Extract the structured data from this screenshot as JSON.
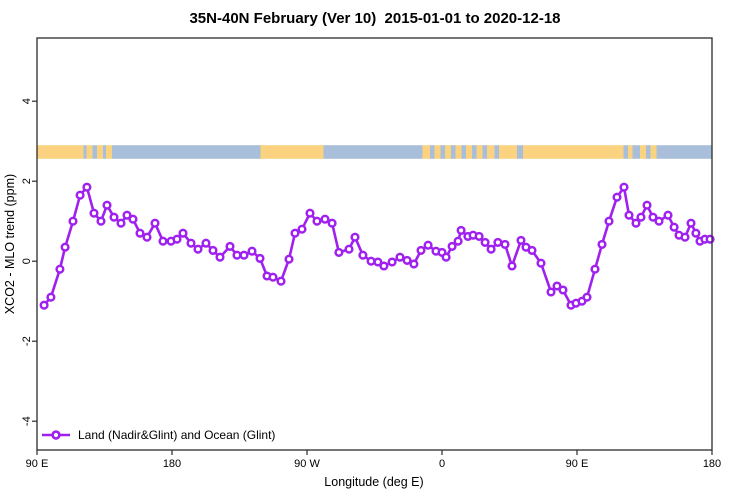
{
  "title": "35N-40N February (Ver 10)  2015-01-01 to 2020-12-18",
  "legend": {
    "label": "Land (Nadir&Glint) and Ocean (Glint)"
  },
  "colors": {
    "series": "#A020F0",
    "land": "#FAD280",
    "ocean": "#A9BEDB",
    "axis": "#1a1a1a"
  },
  "chart_data": {
    "type": "line",
    "title": "35N-40N February (Ver 10)  2015-01-01 to 2020-12-18",
    "xlabel": "Longitude (deg E)",
    "ylabel": "XCO2 - MLO trend (ppm)",
    "xlim": [
      90,
      540
    ],
    "ylim": [
      -4.72,
      5.58
    ],
    "grid": false,
    "legend_position": "bottom-left-inside",
    "x_ticks": [
      {
        "deg": 90,
        "label": "90 E"
      },
      {
        "deg": 180,
        "label": "180"
      },
      {
        "deg": 270,
        "label": "90 W"
      },
      {
        "deg": 360,
        "label": "0"
      },
      {
        "deg": 450,
        "label": "90 E"
      },
      {
        "deg": 540,
        "label": "180"
      }
    ],
    "y_ticks": [
      -4,
      -2,
      0,
      2,
      4
    ],
    "series": [
      {
        "name": "Land (Nadir&Glint) and Ocean (Glint)",
        "color": "#A020F0",
        "marker": "open-circle",
        "points": [
          [
            94.7,
            -1.1
          ],
          [
            99.3,
            -0.9
          ],
          [
            105.3,
            -0.2
          ],
          [
            108.7,
            0.35
          ],
          [
            114,
            1.0
          ],
          [
            118.7,
            1.65
          ],
          [
            123.3,
            1.85
          ],
          [
            128,
            1.2
          ],
          [
            132.7,
            1.0
          ],
          [
            136.7,
            1.4
          ],
          [
            141.3,
            1.1
          ],
          [
            146,
            0.95
          ],
          [
            150,
            1.15
          ],
          [
            154,
            1.05
          ],
          [
            158.7,
            0.7
          ],
          [
            163.3,
            0.6
          ],
          [
            168.7,
            0.95
          ],
          [
            174,
            0.5
          ],
          [
            179.3,
            0.5
          ],
          [
            183.3,
            0.55
          ],
          [
            187.3,
            0.7
          ],
          [
            192.7,
            0.45
          ],
          [
            197.3,
            0.3
          ],
          [
            202.7,
            0.45
          ],
          [
            207.3,
            0.27
          ],
          [
            212,
            0.1
          ],
          [
            218.7,
            0.37
          ],
          [
            223.3,
            0.15
          ],
          [
            228,
            0.15
          ],
          [
            233.3,
            0.25
          ],
          [
            238.7,
            0.07
          ],
          [
            243.3,
            -0.37
          ],
          [
            247.3,
            -0.4
          ],
          [
            252.7,
            -0.5
          ],
          [
            258,
            0.05
          ],
          [
            262,
            0.7
          ],
          [
            266.7,
            0.8
          ],
          [
            272,
            1.2
          ],
          [
            276.7,
            1.0
          ],
          [
            282,
            1.05
          ],
          [
            286.7,
            0.95
          ],
          [
            291.3,
            0.22
          ],
          [
            298,
            0.3
          ],
          [
            302,
            0.6
          ],
          [
            307.3,
            0.15
          ],
          [
            312.7,
            0.0
          ],
          [
            317.3,
            -0.02
          ],
          [
            321.3,
            -0.12
          ],
          [
            326.7,
            -0.02
          ],
          [
            332,
            0.1
          ],
          [
            336.7,
            0.02
          ],
          [
            341.3,
            -0.07
          ],
          [
            346,
            0.27
          ],
          [
            350.7,
            0.4
          ],
          [
            356,
            0.25
          ],
          [
            360,
            0.22
          ],
          [
            362.7,
            0.1
          ],
          [
            366.7,
            0.37
          ],
          [
            370.7,
            0.5
          ],
          [
            372.7,
            0.77
          ],
          [
            377.3,
            0.62
          ],
          [
            380.7,
            0.65
          ],
          [
            384.7,
            0.62
          ],
          [
            388.7,
            0.47
          ],
          [
            392.7,
            0.3
          ],
          [
            397.3,
            0.47
          ],
          [
            402,
            0.42
          ],
          [
            406.7,
            -0.12
          ],
          [
            412.7,
            0.52
          ],
          [
            416,
            0.35
          ],
          [
            420,
            0.27
          ],
          [
            426,
            -0.05
          ],
          [
            432.7,
            -0.77
          ],
          [
            436.7,
            -0.62
          ],
          [
            440.7,
            -0.72
          ],
          [
            446,
            -1.1
          ],
          [
            449.3,
            -1.05
          ],
          [
            453.3,
            -1.0
          ],
          [
            456.7,
            -0.9
          ],
          [
            462,
            -0.2
          ],
          [
            466.7,
            0.42
          ],
          [
            471.3,
            1.0
          ],
          [
            476.7,
            1.6
          ],
          [
            481.3,
            1.85
          ],
          [
            484.7,
            1.15
          ],
          [
            489.3,
            0.95
          ],
          [
            492.7,
            1.1
          ],
          [
            496.7,
            1.4
          ],
          [
            500.7,
            1.1
          ],
          [
            504.7,
            1.0
          ],
          [
            510.7,
            1.15
          ],
          [
            514.7,
            0.85
          ],
          [
            518,
            0.65
          ],
          [
            522,
            0.6
          ],
          [
            526,
            0.95
          ],
          [
            529.3,
            0.7
          ],
          [
            532,
            0.5
          ],
          [
            535.3,
            0.55
          ],
          [
            538.7,
            0.55
          ]
        ]
      }
    ],
    "map_strip": {
      "description": "35N-40N latitude land/ocean strip",
      "y_range_ppm": [
        2.56,
        2.9
      ],
      "land_color": "#FAD280",
      "ocean_color": "#A9BEDB",
      "segments": [
        [
          90,
          121,
          "land"
        ],
        [
          121,
          123,
          "ocean"
        ],
        [
          123,
          127,
          "land"
        ],
        [
          127,
          130,
          "ocean"
        ],
        [
          130,
          134,
          "land"
        ],
        [
          134,
          136,
          "ocean"
        ],
        [
          136,
          140,
          "land"
        ],
        [
          140,
          239,
          "ocean"
        ],
        [
          239,
          281,
          "land"
        ],
        [
          281,
          347,
          "ocean"
        ],
        [
          347,
          352,
          "land"
        ],
        [
          352,
          355,
          "ocean"
        ],
        [
          355,
          359,
          "land"
        ],
        [
          359,
          362,
          "ocean"
        ],
        [
          362,
          366,
          "land"
        ],
        [
          366,
          369,
          "ocean"
        ],
        [
          369,
          373,
          "land"
        ],
        [
          373,
          376,
          "ocean"
        ],
        [
          376,
          380,
          "land"
        ],
        [
          380,
          383,
          "ocean"
        ],
        [
          383,
          387,
          "land"
        ],
        [
          387,
          390,
          "ocean"
        ],
        [
          390,
          395,
          "land"
        ],
        [
          395,
          398,
          "ocean"
        ],
        [
          398,
          410,
          "land"
        ],
        [
          410,
          414,
          "ocean"
        ],
        [
          414,
          481,
          "land"
        ],
        [
          481,
          484,
          "ocean"
        ],
        [
          484,
          487,
          "land"
        ],
        [
          487,
          492,
          "ocean"
        ],
        [
          492,
          496,
          "land"
        ],
        [
          496,
          499,
          "ocean"
        ],
        [
          499,
          503,
          "land"
        ],
        [
          503,
          540,
          "ocean"
        ]
      ]
    }
  }
}
